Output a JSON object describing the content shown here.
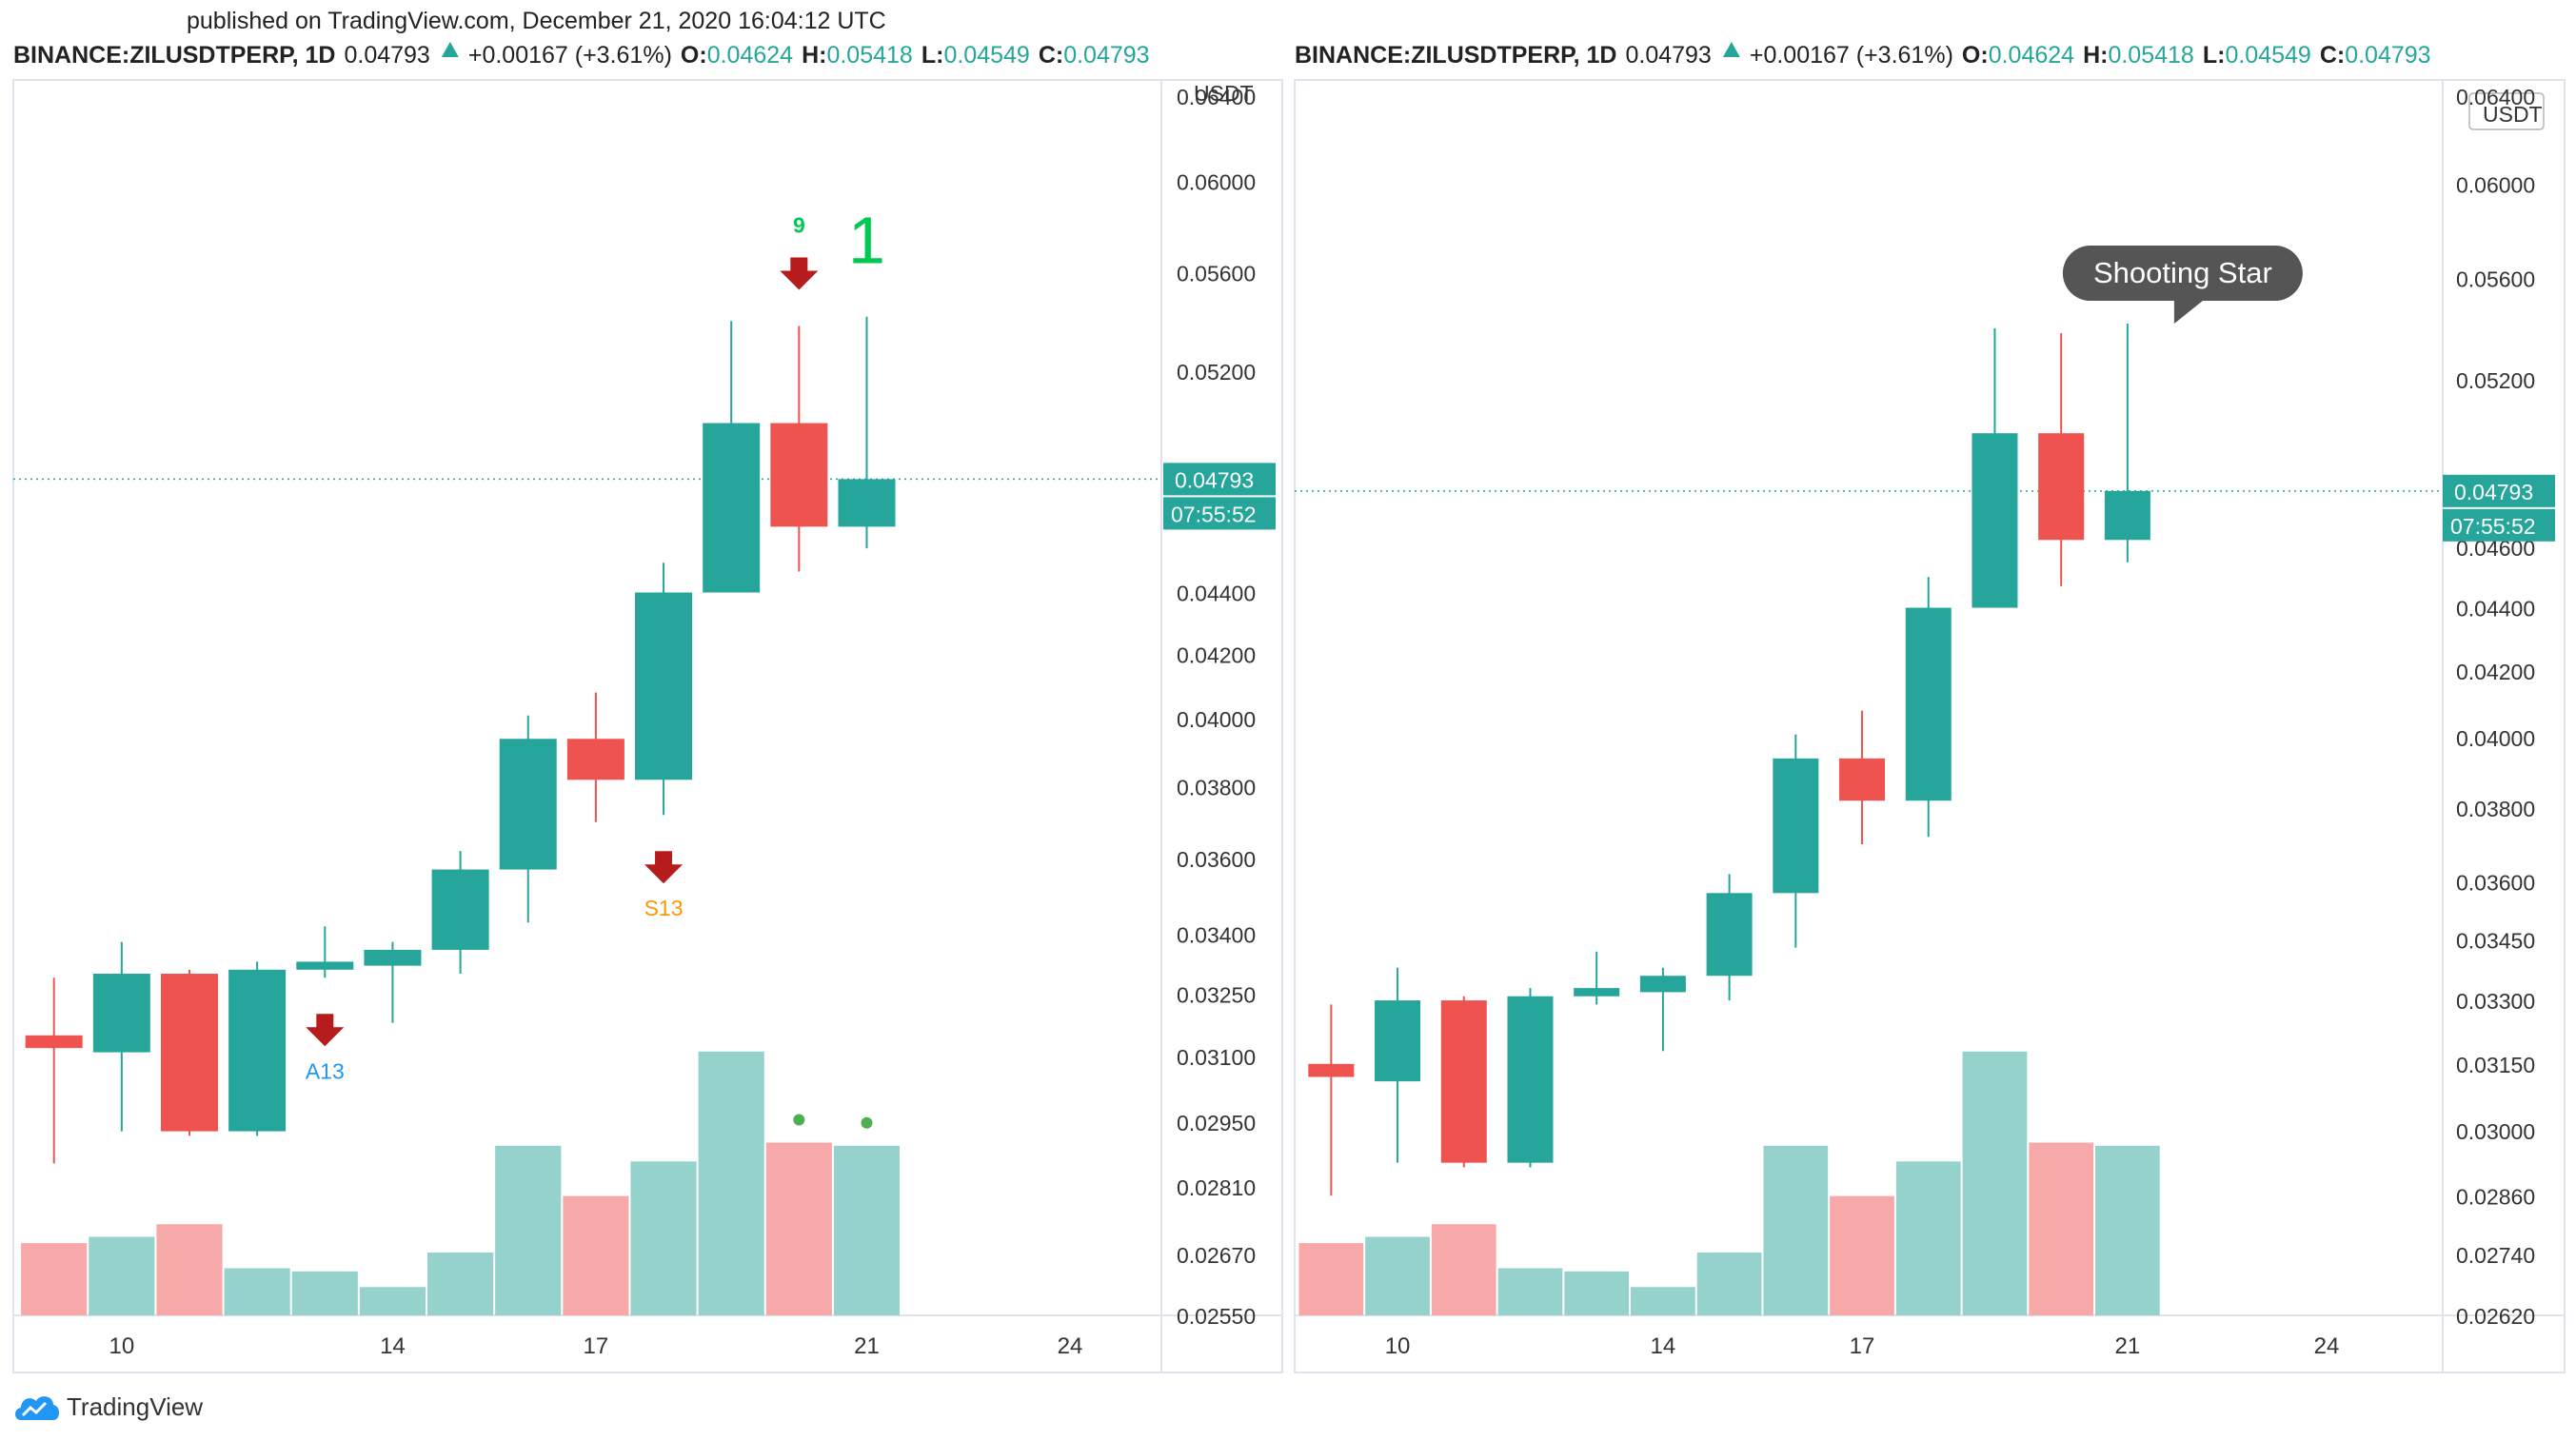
{
  "published": "published on TradingView.com, December 21, 2020 16:04:12 UTC",
  "footer": {
    "logo_text": "TradingView"
  },
  "colors": {
    "up": "#26a69a",
    "down": "#ef5350",
    "vol_up": "#95d2cc",
    "vol_down": "#f6a9a8",
    "signal_arrow": "#b71c1c",
    "td_green": "#00c853",
    "a13": "#2196f3",
    "s13": "#ff9800",
    "axis_text": "#333333",
    "frame": "#e0e3eb"
  },
  "chart_data": [
    {
      "type": "candlestick",
      "header": {
        "symbol": "BINANCE:ZILUSDTPERP, 1D",
        "last": "0.04793",
        "change": "+0.00167 (+3.61%)",
        "o_label": "O:",
        "o": "0.04624",
        "h_label": "H:",
        "h": "0.05418",
        "l_label": "L:",
        "l": "0.04549",
        "c_label": "C:",
        "c": "0.04793"
      },
      "currency": "USDT",
      "price_scale": "log",
      "yticks": [
        "0.06400",
        "0.06000",
        "0.05600",
        "0.05200",
        "0.04400",
        "0.04200",
        "0.04000",
        "0.03800",
        "0.03600",
        "0.03400",
        "0.03250",
        "0.03100",
        "0.02950",
        "0.02810",
        "0.02670",
        "0.02550"
      ],
      "ylim": [
        0.0255,
        0.0645
      ],
      "xticks": [
        {
          "day": 10,
          "label": "10"
        },
        {
          "day": 14,
          "label": "14"
        },
        {
          "day": 17,
          "label": "17"
        },
        {
          "day": 21,
          "label": "21"
        },
        {
          "day": 24,
          "label": "24"
        }
      ],
      "xlim": [
        8.4,
        25.35
      ],
      "price_label": "0.04793",
      "countdown_label": "07:55:52",
      "candles": [
        {
          "day": 9,
          "o": 0.0315,
          "h": 0.0329,
          "l": 0.0286,
          "c": 0.0312
        },
        {
          "day": 10,
          "o": 0.0311,
          "h": 0.0338,
          "l": 0.0293,
          "c": 0.033
        },
        {
          "day": 11,
          "o": 0.033,
          "h": 0.0331,
          "l": 0.0292,
          "c": 0.0293
        },
        {
          "day": 12,
          "o": 0.0293,
          "h": 0.0333,
          "l": 0.0292,
          "c": 0.0331
        },
        {
          "day": 13,
          "o": 0.0331,
          "h": 0.0342,
          "l": 0.0329,
          "c": 0.0333
        },
        {
          "day": 14,
          "o": 0.0332,
          "h": 0.0338,
          "l": 0.0318,
          "c": 0.0336
        },
        {
          "day": 15,
          "o": 0.0336,
          "h": 0.0362,
          "l": 0.033,
          "c": 0.0357
        },
        {
          "day": 16,
          "o": 0.0357,
          "h": 0.0401,
          "l": 0.0343,
          "c": 0.0394
        },
        {
          "day": 17,
          "o": 0.0394,
          "h": 0.0408,
          "l": 0.037,
          "c": 0.0382
        },
        {
          "day": 18,
          "o": 0.0382,
          "h": 0.045,
          "l": 0.0372,
          "c": 0.044
        },
        {
          "day": 19,
          "o": 0.044,
          "h": 0.054,
          "l": 0.044,
          "c": 0.05
        },
        {
          "day": 20,
          "o": 0.05,
          "h": 0.0538,
          "l": 0.0447,
          "c": 0.04624
        },
        {
          "day": 21,
          "o": 0.04624,
          "h": 0.05418,
          "l": 0.04549,
          "c": 0.04793
        }
      ],
      "volume": [
        0.23,
        0.25,
        0.29,
        0.15,
        0.14,
        0.09,
        0.2,
        0.54,
        0.38,
        0.49,
        0.84,
        0.55,
        0.54
      ],
      "indicators": {
        "sell_arrows_days": [
          13,
          18,
          20
        ],
        "a13": {
          "day": 13,
          "label": "A13"
        },
        "s13": {
          "day": 18,
          "label": "S13"
        },
        "td9": {
          "day": 20,
          "label": "9"
        },
        "td1": {
          "day": 21,
          "label": "1"
        },
        "dots_days": [
          20,
          21
        ]
      }
    },
    {
      "type": "candlestick",
      "header": {
        "symbol": "BINANCE:ZILUSDTPERP, 1D",
        "last": "0.04793",
        "change": "+0.00167 (+3.61%)",
        "o_label": "O:",
        "o": "0.04624",
        "h_label": "H:",
        "h": "0.05418",
        "l_label": "L:",
        "l": "0.04549",
        "c_label": "C:",
        "c": "0.04793"
      },
      "currency": "USDT",
      "price_scale": "log",
      "yticks": [
        "0.06400",
        "0.06000",
        "0.05600",
        "0.05200",
        "0.04600",
        "0.04400",
        "0.04200",
        "0.04000",
        "0.03800",
        "0.03600",
        "0.03450",
        "0.03300",
        "0.03150",
        "0.03000",
        "0.02860",
        "0.02740",
        "0.02620"
      ],
      "ylim": [
        0.0262,
        0.0645
      ],
      "xticks": [
        {
          "day": 10,
          "label": "10"
        },
        {
          "day": 14,
          "label": "14"
        },
        {
          "day": 17,
          "label": "17"
        },
        {
          "day": 21,
          "label": "21"
        },
        {
          "day": 24,
          "label": "24"
        }
      ],
      "xlim": [
        8.45,
        25.75
      ],
      "price_label": "0.04793",
      "countdown_label": "07:55:52",
      "annotation": {
        "day": 21,
        "text": "Shooting Star"
      },
      "candles": [
        {
          "day": 9,
          "o": 0.0315,
          "h": 0.0329,
          "l": 0.0286,
          "c": 0.0312
        },
        {
          "day": 10,
          "o": 0.0311,
          "h": 0.0338,
          "l": 0.0293,
          "c": 0.033
        },
        {
          "day": 11,
          "o": 0.033,
          "h": 0.0331,
          "l": 0.0292,
          "c": 0.0293
        },
        {
          "day": 12,
          "o": 0.0293,
          "h": 0.0333,
          "l": 0.0292,
          "c": 0.0331
        },
        {
          "day": 13,
          "o": 0.0331,
          "h": 0.0342,
          "l": 0.0329,
          "c": 0.0333
        },
        {
          "day": 14,
          "o": 0.0332,
          "h": 0.0338,
          "l": 0.0318,
          "c": 0.0336
        },
        {
          "day": 15,
          "o": 0.0336,
          "h": 0.0362,
          "l": 0.033,
          "c": 0.0357
        },
        {
          "day": 16,
          "o": 0.0357,
          "h": 0.0401,
          "l": 0.0343,
          "c": 0.0394
        },
        {
          "day": 17,
          "o": 0.0394,
          "h": 0.0408,
          "l": 0.037,
          "c": 0.0382
        },
        {
          "day": 18,
          "o": 0.0382,
          "h": 0.045,
          "l": 0.0372,
          "c": 0.044
        },
        {
          "day": 19,
          "o": 0.044,
          "h": 0.054,
          "l": 0.044,
          "c": 0.05
        },
        {
          "day": 20,
          "o": 0.05,
          "h": 0.0538,
          "l": 0.0447,
          "c": 0.04624
        },
        {
          "day": 21,
          "o": 0.04624,
          "h": 0.05418,
          "l": 0.04549,
          "c": 0.04793
        }
      ],
      "volume": [
        0.23,
        0.25,
        0.29,
        0.15,
        0.14,
        0.09,
        0.2,
        0.54,
        0.38,
        0.49,
        0.84,
        0.55,
        0.54
      ]
    }
  ]
}
